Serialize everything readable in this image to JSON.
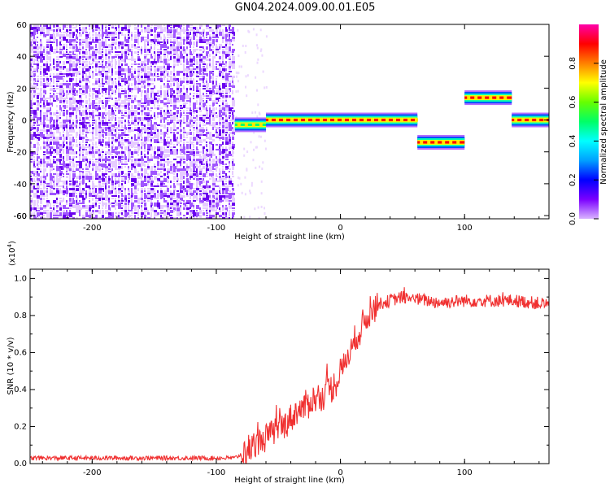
{
  "title": "GN04.2024.009.00.01.E05",
  "chart_data": [
    {
      "type": "heatmap",
      "xlabel": "Height of straight line (km)",
      "ylabel": "Frequency (Hz)",
      "xlim": [
        -250,
        168
      ],
      "ylim": [
        -62,
        60
      ],
      "x_ticks": [
        -200,
        -100,
        0,
        100
      ],
      "y_ticks": [
        -60,
        -40,
        -20,
        0,
        20,
        40,
        60
      ],
      "colorbar": {
        "label": "Normalized spectral amplitude",
        "range": [
          0,
          1
        ],
        "ticks": [
          "0.0",
          "0.2",
          "0.4",
          "0.6",
          "0.8"
        ],
        "colormap": [
          "#d9b3ff",
          "#7a00ff",
          "#0000ff",
          "#00a0ff",
          "#00ffff",
          "#00ff66",
          "#66ff00",
          "#ffff00",
          "#ff8000",
          "#ff0000",
          "#ff00aa"
        ]
      },
      "noise_region": {
        "x_from": -250,
        "x_to": -85,
        "amplitude_range": [
          0.0,
          0.1
        ]
      },
      "dominant_frequency_segments": [
        {
          "x_from": -85,
          "x_to": -60,
          "frequency": -3,
          "amplitude": 0.5
        },
        {
          "x_from": -60,
          "x_to": 62,
          "frequency": 0,
          "amplitude": 0.9
        },
        {
          "x_from": 62,
          "x_to": 100,
          "frequency": -14,
          "amplitude": 0.9
        },
        {
          "x_from": 100,
          "x_to": 138,
          "frequency": 14,
          "amplitude": 0.9
        },
        {
          "x_from": 138,
          "x_to": 168,
          "frequency": 0,
          "amplitude": 0.9
        }
      ]
    },
    {
      "type": "line",
      "xlabel": "Height of straight line (km)",
      "ylabel": "SNR (10 * v/v)",
      "y_multiplier": "(x10",
      "y_multiplier_exp": "4",
      "y_multiplier_close": ")",
      "xlim": [
        -250,
        168
      ],
      "ylim": [
        0,
        1.05
      ],
      "x_ticks": [
        -200,
        -100,
        0,
        100
      ],
      "y_ticks": [
        "0.0",
        "0.2",
        "0.4",
        "0.6",
        "0.8",
        "1.0"
      ],
      "series": [
        {
          "color": "#f03030",
          "x": [
            -250,
            -200,
            -150,
            -100,
            -85,
            -75,
            -65,
            -55,
            -45,
            -35,
            -25,
            -15,
            -5,
            0,
            5,
            10,
            15,
            20,
            25,
            30,
            40,
            50,
            60,
            70,
            80,
            100,
            120,
            140,
            168
          ],
          "y": [
            0.03,
            0.03,
            0.03,
            0.03,
            0.03,
            0.07,
            0.12,
            0.17,
            0.21,
            0.28,
            0.33,
            0.37,
            0.42,
            0.48,
            0.57,
            0.64,
            0.71,
            0.77,
            0.82,
            0.86,
            0.88,
            0.9,
            0.89,
            0.88,
            0.87,
            0.88,
            0.88,
            0.88,
            0.86
          ]
        }
      ]
    }
  ]
}
